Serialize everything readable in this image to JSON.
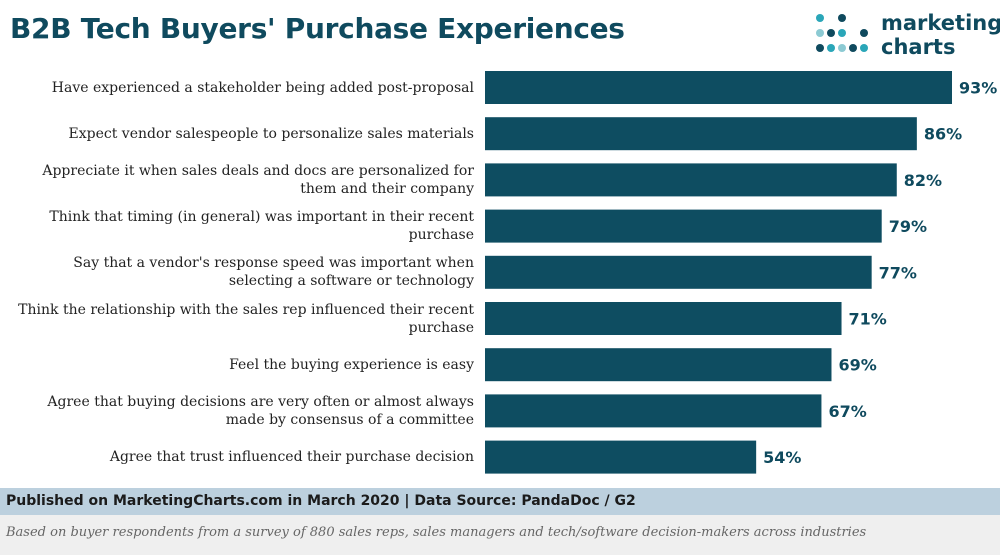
{
  "header": {
    "title": "B2B Tech Buyers' Purchase Experiences",
    "logo_line1": "marketing",
    "logo_line2": "charts"
  },
  "colors": {
    "bar": "#0e4d61",
    "title": "#0f4a5e",
    "footer_bg": "#bcd0de",
    "note_bg": "#efefef",
    "logo_dots": [
      "#2aa6b8",
      "#8ccad3",
      "#0f4a5e"
    ]
  },
  "chart_data": {
    "type": "bar",
    "orientation": "horizontal",
    "categories": [
      [
        "Have experienced a stakeholder being added post-proposal"
      ],
      [
        "Expect vendor salespeople to personalize sales materials"
      ],
      [
        "Appreciate it when sales deals and docs are personalized for",
        "them and their company"
      ],
      [
        "Think that timing (in general) was important in their recent",
        "purchase"
      ],
      [
        "Say that a vendor's response speed was important when",
        "selecting a software or technology"
      ],
      [
        "Think the relationship with the sales rep influenced their recent",
        "purchase"
      ],
      [
        "Feel the buying experience is easy"
      ],
      [
        "Agree that buying decisions are very often or almost always",
        "made by consensus of a committee"
      ],
      [
        "Agree that trust influenced their purchase decision"
      ]
    ],
    "values": [
      93,
      86,
      82,
      79,
      77,
      71,
      69,
      67,
      54
    ],
    "value_labels": [
      "93%",
      "86%",
      "82%",
      "79%",
      "77%",
      "71%",
      "69%",
      "67%",
      "54%"
    ],
    "xlim": [
      0,
      100
    ],
    "grid": false,
    "legend": "none"
  },
  "footer": {
    "source": "Published on MarketingCharts.com in March 2020 | Data Source: PandaDoc / G2",
    "note": "Based on buyer respondents from a survey of 880 sales reps, sales managers and tech/software decision-makers across industries"
  }
}
